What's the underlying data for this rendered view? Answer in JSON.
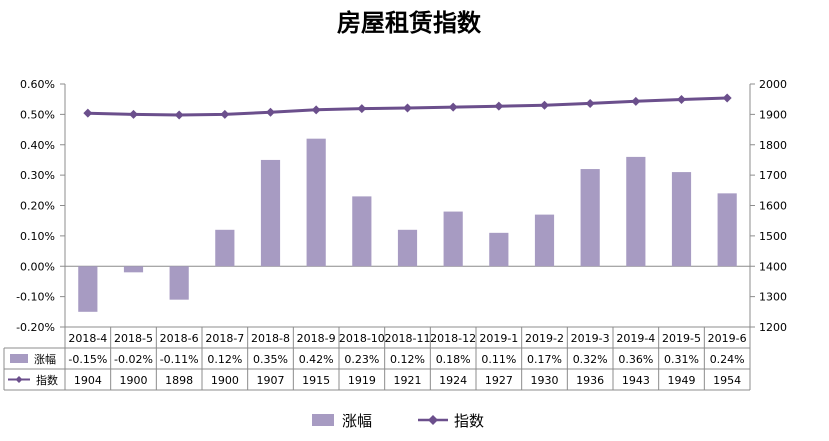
{
  "chart_data": {
    "type": "bar+line",
    "title": "房屋租赁指数",
    "categories": [
      "2018-4",
      "2018-5",
      "2018-6",
      "2018-7",
      "2018-8",
      "2018-9",
      "2018-10",
      "2018-11",
      "2018-12",
      "2019-1",
      "2019-2",
      "2019-3",
      "2019-4",
      "2019-5",
      "2019-6"
    ],
    "series": [
      {
        "name": "涨幅",
        "type": "bar",
        "axis": "left",
        "color": "#a79bc2",
        "values": [
          -0.15,
          -0.02,
          -0.11,
          0.12,
          0.35,
          0.42,
          0.23,
          0.12,
          0.18,
          0.11,
          0.17,
          0.32,
          0.36,
          0.31,
          0.24
        ],
        "labels": [
          "-0.15%",
          "-0.02%",
          "-0.11%",
          "0.12%",
          "0.35%",
          "0.42%",
          "0.23%",
          "0.12%",
          "0.18%",
          "0.11%",
          "0.17%",
          "0.32%",
          "0.36%",
          "0.31%",
          "0.24%"
        ]
      },
      {
        "name": "指数",
        "type": "line",
        "axis": "right",
        "color": "#6b4f8c",
        "values": [
          1904,
          1900,
          1898,
          1900,
          1907,
          1915,
          1919,
          1921,
          1924,
          1927,
          1930,
          1936,
          1943,
          1949,
          1954
        ],
        "labels": [
          "1904",
          "1900",
          "1898",
          "1900",
          "1907",
          "1915",
          "1919",
          "1921",
          "1924",
          "1927",
          "1930",
          "1936",
          "1943",
          "1949",
          "1954"
        ]
      }
    ],
    "left_axis": {
      "min": -0.2,
      "max": 0.6,
      "step": 0.1,
      "tick_labels": [
        "-0.20%",
        "-0.10%",
        "0.00%",
        "0.10%",
        "0.20%",
        "0.30%",
        "0.40%",
        "0.50%",
        "0.60%"
      ]
    },
    "right_axis": {
      "min": 1200,
      "max": 2000,
      "step": 100,
      "tick_labels": [
        "1200",
        "1300",
        "1400",
        "1500",
        "1600",
        "1700",
        "1800",
        "1900",
        "2000"
      ]
    },
    "grid": false,
    "data_table": true,
    "legend_position": "bottom"
  }
}
